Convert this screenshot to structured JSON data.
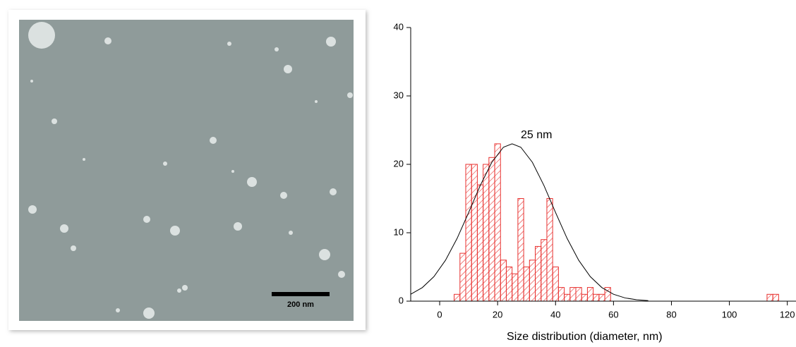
{
  "scale_bar": "200 nm",
  "chart_data": {
    "type": "histogram",
    "xlabel": "Size distribution (diameter, nm)",
    "annotation": "25 nm",
    "color": "#e8312f",
    "bins": [
      5,
      7,
      9,
      11,
      13,
      15,
      17,
      19,
      21,
      23,
      25,
      27,
      29,
      31,
      33,
      35,
      37,
      39,
      41,
      43,
      45,
      47,
      49,
      51,
      53,
      55,
      57,
      59,
      61,
      63,
      65,
      67,
      69,
      71,
      73,
      75,
      77,
      79,
      81,
      83,
      85,
      87,
      89,
      91,
      93,
      95,
      97,
      99,
      101,
      103,
      105,
      107,
      109,
      111,
      113,
      115,
      117
    ],
    "values": [
      1,
      7,
      20,
      20,
      17,
      20,
      21,
      23,
      6,
      5,
      4,
      15,
      5,
      6,
      8,
      9,
      15,
      5,
      2,
      1,
      2,
      2,
      1,
      2,
      1,
      1,
      2,
      0,
      0,
      0,
      0,
      0,
      0,
      0,
      0,
      0,
      0,
      0,
      0,
      0,
      0,
      0,
      0,
      0,
      0,
      0,
      0,
      0,
      0,
      0,
      0,
      0,
      0,
      0,
      1,
      1
    ],
    "fit": {
      "x": [
        -10,
        -6,
        -2,
        2,
        6,
        10,
        14,
        18,
        22,
        25,
        28,
        32,
        36,
        40,
        44,
        48,
        52,
        56,
        60,
        64,
        68,
        72
      ],
      "y": [
        1.01,
        1.98,
        3.58,
        5.97,
        9.16,
        12.96,
        16.9,
        20.3,
        22.5,
        23,
        22.5,
        20.3,
        16.9,
        12.96,
        9.16,
        5.97,
        3.58,
        1.98,
        1.01,
        0.47,
        0.21,
        0.08
      ],
      "color": "#000000"
    },
    "xlim": [
      -10,
      123
    ],
    "ylim": [
      0,
      40
    ],
    "xticks": [
      0,
      20,
      40,
      60,
      80,
      100,
      120
    ],
    "yticks": [
      0,
      10,
      20,
      30,
      40
    ]
  }
}
